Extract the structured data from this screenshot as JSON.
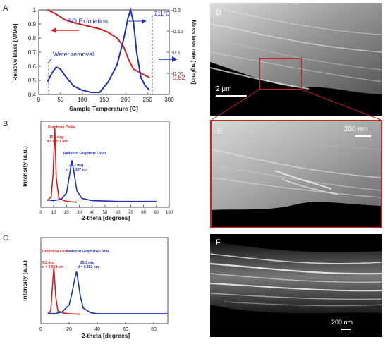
{
  "panels": {
    "A": {
      "letter": "A",
      "ylabel_left": "Relative Mass [M/Mo]",
      "ylabel_right": "Mass loss rate [mg/min]",
      "xlabel": "Sample Temperature [C]",
      "ann_water": "Water removal",
      "ann_go": "GO Exfoliation",
      "ann_peak": "211°C",
      "ann_end": "0.52",
      "left_ticks": [
        "0.4",
        "0.5",
        "0.6",
        "0.7",
        "0.8",
        "0.9",
        "1"
      ],
      "right_ticks": [
        "-0.05",
        "-0.1",
        "-0.15",
        "-0.2"
      ],
      "x_ticks": [
        "0",
        "50",
        "100",
        "150",
        "200",
        "250",
        "300"
      ]
    },
    "B": {
      "letter": "B",
      "ylabel": "Intensity (a.u.)",
      "xlabel": "2-theta [degrees]",
      "go_name": "Graphene Oxide",
      "go_deg": "10.9 deg",
      "go_d": "d = 0.811 nm",
      "rgo_name": "Reduced Graphene Oxide",
      "rgo_deg": "24.2 deg",
      "rgo_d": "d = 0.367 nm",
      "x_ticks": [
        "0",
        "10",
        "20",
        "30",
        "40",
        "50",
        "60",
        "70",
        "80",
        "90",
        "100"
      ]
    },
    "C": {
      "letter": "C",
      "ylabel": "Intensity (a.u.)",
      "xlabel": "2-theta [degrees]",
      "go_name": "Graphene Oxide",
      "go_deg": "9.2 deg",
      "go_d": "d = 0.954 nm",
      "rgo_name": "Reduced Graphene Oxide",
      "rgo_deg": "25.3 deg",
      "rgo_d": "d = 0.352 nm",
      "x_ticks": [
        "0",
        "20",
        "40",
        "60",
        "80"
      ]
    },
    "D": {
      "letter": "D",
      "scale": "2 μm"
    },
    "E": {
      "letter": "E",
      "scale": "200 nm"
    },
    "F": {
      "letter": "F",
      "scale": "200 nm"
    }
  },
  "colors": {
    "red": "#d42020",
    "blue": "#2230b8",
    "frame": "#cc2222"
  },
  "chart_data": [
    {
      "type": "line",
      "panel": "A",
      "xlabel": "Sample Temperature [C]",
      "ylabel": "Relative Mass [M/Mo]",
      "xlim": [
        0,
        300
      ],
      "ylim": [
        0.4,
        1.0
      ],
      "y2label": "Mass loss rate [mg/min]",
      "y2lim": [
        -0.2,
        0.0
      ],
      "series": [
        {
          "x": [
            20,
            40,
            60,
            80,
            100,
            120,
            140,
            160,
            180,
            195,
            205,
            211,
            218,
            230,
            245,
            255
          ],
          "y": [
            1.0,
            0.97,
            0.93,
            0.91,
            0.895,
            0.88,
            0.865,
            0.84,
            0.8,
            0.74,
            0.66,
            0.62,
            0.58,
            0.56,
            0.535,
            0.52
          ]
        },
        {
          "x": [
            20,
            30,
            40,
            50,
            60,
            80,
            100,
            120,
            140,
            160,
            180,
            195,
            205,
            211,
            218,
            225,
            235,
            245,
            255
          ],
          "y": [
            -0.03,
            -0.05,
            -0.065,
            -0.06,
            -0.045,
            -0.02,
            -0.01,
            -0.005,
            -0.005,
            -0.03,
            -0.07,
            -0.13,
            -0.18,
            -0.2,
            -0.17,
            -0.1,
            -0.04,
            -0.02,
            -0.01
          ]
        }
      ]
    },
    {
      "type": "line",
      "panel": "B",
      "xlabel": "2-theta [degrees]",
      "ylabel": "Intensity (a.u.)",
      "xlim": [
        0,
        100
      ],
      "series": [
        {
          "name": "Graphene Oxide",
          "x": [
            5,
            8,
            9.5,
            10.9,
            12,
            14,
            20,
            28
          ],
          "y": [
            0.05,
            0.1,
            0.4,
            1.0,
            0.35,
            0.08,
            0.04,
            0.03
          ]
        },
        {
          "name": "Reduced Graphene Oxide",
          "x": [
            5,
            10,
            16,
            20,
            22,
            24.2,
            26,
            28,
            32,
            40,
            60,
            90
          ],
          "y": [
            0.06,
            0.05,
            0.07,
            0.15,
            0.35,
            0.58,
            0.4,
            0.18,
            0.08,
            0.05,
            0.04,
            0.04
          ]
        }
      ]
    },
    {
      "type": "line",
      "panel": "C",
      "xlabel": "2-theta [degrees]",
      "ylabel": "Intensity (a.u.)",
      "xlim": [
        0,
        90
      ],
      "series": [
        {
          "name": "Graphene Oxide",
          "x": [
            5,
            7,
            8,
            9.2,
            10.5,
            12,
            16,
            20,
            28
          ],
          "y": [
            0.05,
            0.1,
            0.45,
            0.85,
            0.35,
            0.1,
            0.06,
            0.05,
            0.04
          ]
        },
        {
          "name": "Reduced Graphene Oxide",
          "x": [
            5,
            10,
            15,
            20,
            22,
            24,
            25.3,
            26.5,
            28,
            30,
            35,
            40,
            60,
            90
          ],
          "y": [
            0.06,
            0.05,
            0.08,
            0.2,
            0.4,
            0.65,
            0.78,
            0.6,
            0.35,
            0.15,
            0.07,
            0.05,
            0.05,
            0.05
          ]
        }
      ]
    }
  ]
}
